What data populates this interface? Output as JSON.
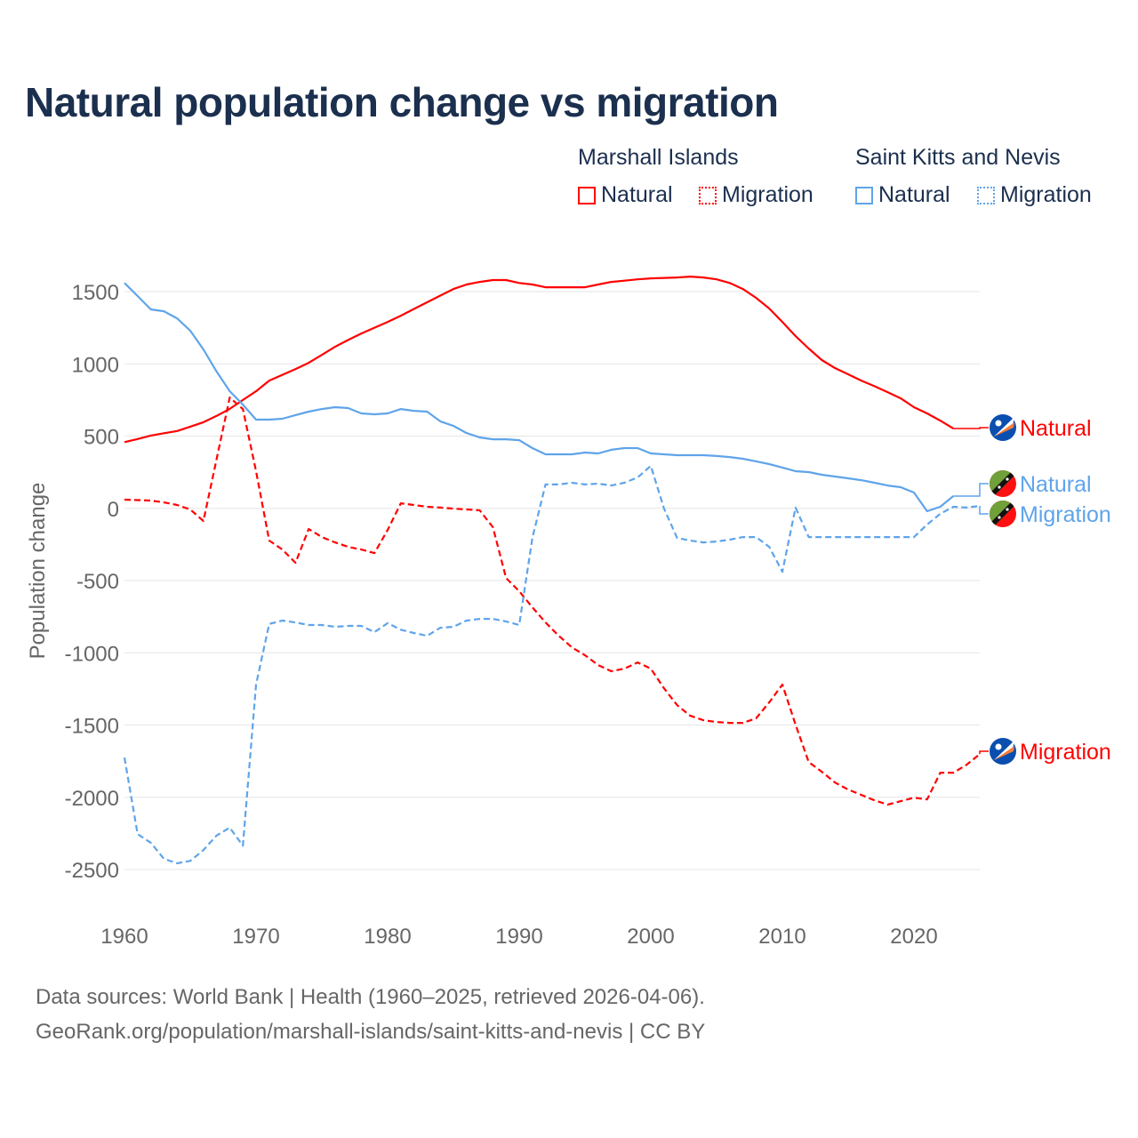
{
  "title": "Natural population change vs migration",
  "legend": {
    "groups": [
      {
        "name": "Marshall Islands",
        "color": "#ff0000",
        "items": [
          "Natural",
          "Migration"
        ]
      },
      {
        "name": "Saint Kitts and Nevis",
        "color": "#5fa4ea",
        "items": [
          "Natural",
          "Migration"
        ]
      }
    ]
  },
  "source": {
    "line1": "Data sources: World Bank | Health (1960–2025, retrieved 2026-04-06).",
    "line2": "GeoRank.org/population/marshall-islands/saint-kitts-and-nevis | CC BY"
  },
  "chart_data": {
    "type": "line",
    "title": "Natural population change vs migration",
    "xlabel": "",
    "ylabel": "Population change",
    "xlim": [
      1960,
      2025
    ],
    "ylim": [
      -2500,
      1500
    ],
    "xticks": [
      "1960",
      "1970",
      "1980",
      "1990",
      "2000",
      "2010",
      "2020"
    ],
    "yticks": [
      "1500",
      "1000",
      "500",
      "0",
      "-500",
      "-1000",
      "-1500",
      "-2000",
      "-2500"
    ],
    "grid": true,
    "series": [
      {
        "name": "Marshall Islands Natural",
        "label": "Natural",
        "country": "Marshall Islands",
        "color": "#ff0000",
        "dash": false,
        "start": 1960,
        "values": [
          458,
          480,
          504,
          520,
          535,
          565,
          596,
          640,
          688,
          750,
          810,
          884,
          924,
          964,
          1007,
          1062,
          1118,
          1165,
          1210,
          1250,
          1290,
          1333,
          1380,
          1426,
          1472,
          1518,
          1549,
          1567,
          1580,
          1580,
          1560,
          1549,
          1530,
          1530,
          1530,
          1530,
          1549,
          1567,
          1576,
          1585,
          1592,
          1595,
          1598,
          1604,
          1598,
          1585,
          1560,
          1518,
          1457,
          1383,
          1290,
          1192,
          1106,
          1026,
          971,
          928,
          884,
          845,
          804,
          761,
          700,
          657,
          607,
          552
        ]
      },
      {
        "name": "Marshall Islands Migration",
        "label": "Migration",
        "country": "Marshall Islands",
        "color": "#ff0000",
        "dash": true,
        "start": 1960,
        "values": [
          60,
          57,
          54,
          41,
          23,
          -8,
          -88,
          340,
          767,
          687,
          257,
          -223,
          -285,
          -377,
          -143,
          -199,
          -236,
          -267,
          -285,
          -310,
          -150,
          35,
          23,
          11,
          5,
          -2,
          -8,
          -14,
          -131,
          -482,
          -574,
          -685,
          -790,
          -882,
          -962,
          -1017,
          -1085,
          -1128,
          -1110,
          -1067,
          -1110,
          -1245,
          -1362,
          -1436,
          -1467,
          -1479,
          -1485,
          -1485,
          -1454,
          -1343,
          -1220,
          -1497,
          -1756,
          -1824,
          -1898,
          -1947,
          -1984,
          -2021,
          -2051,
          -2027,
          -2003,
          -2015,
          -1830,
          -1830,
          -1775,
          -1701
        ]
      },
      {
        "name": "Saint Kitts and Nevis Natural",
        "label": "Natural",
        "country": "Saint Kitts and Nevis",
        "color": "#5fa4ea",
        "dash": false,
        "start": 1960,
        "values": [
          1560,
          1469,
          1377,
          1364,
          1315,
          1229,
          1100,
          947,
          811,
          718,
          614,
          614,
          620,
          645,
          669,
          687,
          700,
          694,
          657,
          651,
          657,
          687,
          675,
          669,
          602,
          571,
          521,
          491,
          478,
          478,
          472,
          417,
          374,
          374,
          374,
          386,
          380,
          405,
          417,
          417,
          380,
          374,
          368,
          368,
          368,
          362,
          355,
          343,
          325,
          306,
          282,
          257,
          251,
          232,
          220,
          208,
          195,
          177,
          158,
          146,
          109,
          -20,
          11,
          85
        ]
      },
      {
        "name": "Saint Kitts and Nevis Migration",
        "label": "Migration",
        "country": "Saint Kitts and Nevis",
        "color": "#5fa4ea",
        "dash": true,
        "start": 1960,
        "values": [
          -1725,
          -2255,
          -2315,
          -2426,
          -2457,
          -2440,
          -2365,
          -2265,
          -2210,
          -2335,
          -1220,
          -800,
          -777,
          -790,
          -808,
          -808,
          -820,
          -814,
          -814,
          -857,
          -795,
          -840,
          -863,
          -882,
          -827,
          -820,
          -777,
          -765,
          -765,
          -783,
          -808,
          -205,
          165,
          165,
          177,
          165,
          171,
          158,
          177,
          214,
          294,
          0,
          -205,
          -223,
          -236,
          -230,
          -217,
          -199,
          -199,
          -267,
          -439,
          5,
          -199,
          -199,
          -199,
          -199,
          -199,
          -199,
          -199,
          -199,
          -199,
          -112,
          -38,
          11,
          5,
          17
        ]
      }
    ]
  }
}
